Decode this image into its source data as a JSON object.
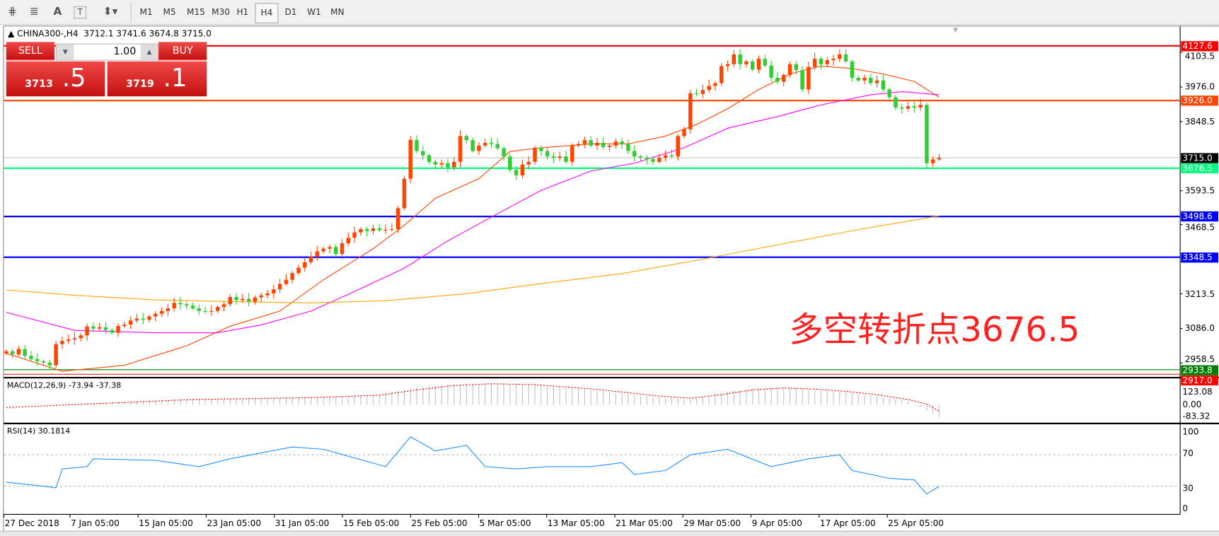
{
  "toolbar": {
    "tools": [
      "elliott-wave-icon",
      "fibonacci-fan-icon",
      "text-icon",
      "text-label-icon",
      "arrows-icon"
    ],
    "periods": [
      "M1",
      "M5",
      "M15",
      "M30",
      "H1",
      "H4",
      "D1",
      "W1",
      "MN"
    ],
    "active_period": "H4"
  },
  "chart": {
    "title": "CHINA300-,H4  3712.1 3741.6 3674.8 3715.0",
    "trade_panel": {
      "sell_label": "SELL",
      "buy_label": "BUY",
      "volume": "1.00",
      "sell_price_main": "3713",
      "sell_price_frac": ".5",
      "buy_price_main": "3719",
      "buy_price_frac": ".1"
    },
    "annotation": "多空转折点3676.5",
    "colors": {
      "up": "#ff4500",
      "down": "#32cd32",
      "ma_fast": "#ff4500",
      "ma_mid": "#ff00ff",
      "ma_slow": "#ffa500",
      "rsi": "#1e90ff",
      "macd_signal": "#ff0000",
      "macd_hist": "#c0c0c0"
    }
  },
  "price_axis": {
    "ticks": [
      "4103.5",
      "3976.0",
      "3848.5",
      "3593.5",
      "3468.5",
      "3213.5",
      "3086.0",
      "2958.5"
    ],
    "levels": [
      {
        "value": "4127.6",
        "color": "#ff0000"
      },
      {
        "value": "3926.0",
        "color": "#ff4500"
      },
      {
        "value": "3715.0",
        "color": "#000000"
      },
      {
        "value": "3676.5",
        "color": "#00ff7f"
      },
      {
        "value": "3498.6",
        "color": "#0000ff"
      },
      {
        "value": "3348.5",
        "color": "#0000ff"
      },
      {
        "value": "2917.0",
        "color": "#ff0000"
      },
      {
        "value": "2933.8",
        "color": "#008000"
      }
    ]
  },
  "time_axis": [
    "27 Dec 2018",
    "7 Jan 05:00",
    "15 Jan 05:00",
    "23 Jan 05:00",
    "31 Jan 05:00",
    "15 Feb 05:00",
    "25 Feb 05:00",
    "5 Mar 05:00",
    "13 Mar 05:00",
    "21 Mar 05:00",
    "29 Mar 05:00",
    "9 Apr 05:00",
    "17 Apr 05:00",
    "25 Apr 05:00"
  ],
  "macd": {
    "title": "MACD(12,26,9) -73.94 -37.38",
    "ticks": [
      "123.08",
      "0.00",
      "-83.32"
    ]
  },
  "rsi": {
    "title": "RSI(14) 30.1814",
    "ticks": [
      "100",
      "70",
      "30",
      "0"
    ]
  },
  "chart_data": {
    "type": "candlestick",
    "closes": [
      3002,
      2990,
      3010,
      2985,
      2973,
      2965,
      2960,
      2950,
      3028,
      3040,
      3045,
      3050,
      3060,
      3093,
      3085,
      3090,
      3080,
      3070,
      3095,
      3100,
      3115,
      3122,
      3118,
      3130,
      3140,
      3150,
      3160,
      3180,
      3175,
      3170,
      3160,
      3150,
      3148,
      3150,
      3165,
      3175,
      3202,
      3190,
      3195,
      3185,
      3200,
      3208,
      3215,
      3230,
      3250,
      3265,
      3290,
      3310,
      3330,
      3352,
      3370,
      3380,
      3386,
      3360,
      3400,
      3420,
      3440,
      3452,
      3445,
      3455,
      3448,
      3450,
      3452,
      3529,
      3638,
      3781,
      3740,
      3724,
      3700,
      3690,
      3695,
      3680,
      3700,
      3795,
      3780,
      3740,
      3760,
      3770,
      3766,
      3750,
      3720,
      3670,
      3650,
      3690,
      3700,
      3752,
      3740,
      3720,
      3715,
      3720,
      3700,
      3760,
      3766,
      3780,
      3760,
      3770,
      3755,
      3760,
      3775,
      3765,
      3740,
      3720,
      3715,
      3710,
      3700,
      3715,
      3724,
      3720,
      3795,
      3820,
      3953,
      3950,
      3965,
      3980,
      3990,
      4053,
      4060,
      4096,
      4060,
      4070,
      4040,
      4080,
      4055,
      4010,
      3995,
      4020,
      4060,
      4038,
      3967,
      4050,
      4080,
      4060,
      4075,
      4080,
      4096,
      4070,
      4010,
      4000,
      4010,
      3990,
      4000,
      3967,
      3938,
      3900,
      3896,
      3905,
      3900,
      3910,
      3695,
      3709,
      3715
    ],
    "ma_fast": [
      {
        "bar": 0,
        "value": 2994
      },
      {
        "bar": 9,
        "value": 2928
      },
      {
        "bar": 19,
        "value": 2950
      },
      {
        "bar": 29,
        "value": 3022
      },
      {
        "bar": 36,
        "value": 3094
      },
      {
        "bar": 44,
        "value": 3150
      },
      {
        "bar": 51,
        "value": 3265
      },
      {
        "bar": 59,
        "value": 3380
      },
      {
        "bar": 64,
        "value": 3466
      },
      {
        "bar": 69,
        "value": 3566
      },
      {
        "bar": 76,
        "value": 3638
      },
      {
        "bar": 81,
        "value": 3738
      },
      {
        "bar": 86,
        "value": 3752
      },
      {
        "bar": 94,
        "value": 3766
      },
      {
        "bar": 100,
        "value": 3766
      },
      {
        "bar": 106,
        "value": 3795
      },
      {
        "bar": 111,
        "value": 3838
      },
      {
        "bar": 116,
        "value": 3896
      },
      {
        "bar": 121,
        "value": 3967
      },
      {
        "bar": 126,
        "value": 4024
      },
      {
        "bar": 131,
        "value": 4053
      },
      {
        "bar": 136,
        "value": 4044
      },
      {
        "bar": 141,
        "value": 4024
      },
      {
        "bar": 146,
        "value": 3996
      },
      {
        "bar": 150,
        "value": 3938
      }
    ],
    "ma_mid": [
      {
        "bar": 0,
        "value": 3145
      },
      {
        "bar": 11,
        "value": 3079
      },
      {
        "bar": 24,
        "value": 3070
      },
      {
        "bar": 34,
        "value": 3070
      },
      {
        "bar": 41,
        "value": 3099
      },
      {
        "bar": 49,
        "value": 3150
      },
      {
        "bar": 56,
        "value": 3222
      },
      {
        "bar": 64,
        "value": 3308
      },
      {
        "bar": 71,
        "value": 3409
      },
      {
        "bar": 79,
        "value": 3509
      },
      {
        "bar": 86,
        "value": 3595
      },
      {
        "bar": 94,
        "value": 3666
      },
      {
        "bar": 101,
        "value": 3695
      },
      {
        "bar": 109,
        "value": 3752
      },
      {
        "bar": 116,
        "value": 3824
      },
      {
        "bar": 124,
        "value": 3867
      },
      {
        "bar": 131,
        "value": 3910
      },
      {
        "bar": 139,
        "value": 3947
      },
      {
        "bar": 144,
        "value": 3959
      },
      {
        "bar": 150,
        "value": 3947
      }
    ],
    "ma_slow": [
      {
        "bar": 0,
        "value": 3228
      },
      {
        "bar": 11,
        "value": 3208
      },
      {
        "bar": 24,
        "value": 3191
      },
      {
        "bar": 36,
        "value": 3185
      },
      {
        "bar": 49,
        "value": 3180
      },
      {
        "bar": 61,
        "value": 3188
      },
      {
        "bar": 74,
        "value": 3214
      },
      {
        "bar": 86,
        "value": 3251
      },
      {
        "bar": 99,
        "value": 3288
      },
      {
        "bar": 111,
        "value": 3337
      },
      {
        "bar": 124,
        "value": 3394
      },
      {
        "bar": 136,
        "value": 3446
      },
      {
        "bar": 150,
        "value": 3501
      }
    ],
    "macd_hist": [
      {
        "bar": 0,
        "value": -5
      },
      {
        "bar": 10,
        "value": 5
      },
      {
        "bar": 20,
        "value": 20
      },
      {
        "bar": 30,
        "value": 35
      },
      {
        "bar": 40,
        "value": 38
      },
      {
        "bar": 50,
        "value": 45
      },
      {
        "bar": 60,
        "value": 60
      },
      {
        "bar": 66,
        "value": 100
      },
      {
        "bar": 72,
        "value": 118
      },
      {
        "bar": 78,
        "value": 123
      },
      {
        "bar": 85,
        "value": 112
      },
      {
        "bar": 95,
        "value": 80
      },
      {
        "bar": 105,
        "value": 42
      },
      {
        "bar": 110,
        "value": 30
      },
      {
        "bar": 115,
        "value": 70
      },
      {
        "bar": 120,
        "value": 95
      },
      {
        "bar": 125,
        "value": 100
      },
      {
        "bar": 130,
        "value": 88
      },
      {
        "bar": 135,
        "value": 72
      },
      {
        "bar": 140,
        "value": 50
      },
      {
        "bar": 145,
        "value": 20
      },
      {
        "bar": 148,
        "value": -30
      },
      {
        "bar": 150,
        "value": -73.94
      }
    ],
    "macd_signal": [
      {
        "bar": 0,
        "value": -15
      },
      {
        "bar": 10,
        "value": 0
      },
      {
        "bar": 20,
        "value": 15
      },
      {
        "bar": 30,
        "value": 30
      },
      {
        "bar": 40,
        "value": 36
      },
      {
        "bar": 50,
        "value": 42
      },
      {
        "bar": 60,
        "value": 55
      },
      {
        "bar": 66,
        "value": 85
      },
      {
        "bar": 72,
        "value": 110
      },
      {
        "bar": 78,
        "value": 120
      },
      {
        "bar": 85,
        "value": 115
      },
      {
        "bar": 95,
        "value": 88
      },
      {
        "bar": 105,
        "value": 50
      },
      {
        "bar": 110,
        "value": 38
      },
      {
        "bar": 115,
        "value": 58
      },
      {
        "bar": 120,
        "value": 85
      },
      {
        "bar": 125,
        "value": 96
      },
      {
        "bar": 130,
        "value": 90
      },
      {
        "bar": 135,
        "value": 77
      },
      {
        "bar": 140,
        "value": 58
      },
      {
        "bar": 145,
        "value": 30
      },
      {
        "bar": 148,
        "value": 5
      },
      {
        "bar": 150,
        "value": -37.38
      }
    ],
    "rsi": [
      {
        "bar": 0,
        "value": 35
      },
      {
        "bar": 6,
        "value": 30
      },
      {
        "bar": 8,
        "value": 28
      },
      {
        "bar": 9,
        "value": 52
      },
      {
        "bar": 13,
        "value": 55
      },
      {
        "bar": 14,
        "value": 65
      },
      {
        "bar": 24,
        "value": 63
      },
      {
        "bar": 31,
        "value": 55
      },
      {
        "bar": 36,
        "value": 65
      },
      {
        "bar": 46,
        "value": 80
      },
      {
        "bar": 51,
        "value": 77
      },
      {
        "bar": 61,
        "value": 55
      },
      {
        "bar": 65,
        "value": 93
      },
      {
        "bar": 69,
        "value": 75
      },
      {
        "bar": 74,
        "value": 82
      },
      {
        "bar": 77,
        "value": 55
      },
      {
        "bar": 82,
        "value": 52
      },
      {
        "bar": 87,
        "value": 55
      },
      {
        "bar": 94,
        "value": 55
      },
      {
        "bar": 99,
        "value": 60
      },
      {
        "bar": 101,
        "value": 45
      },
      {
        "bar": 106,
        "value": 50
      },
      {
        "bar": 110,
        "value": 70
      },
      {
        "bar": 116,
        "value": 77
      },
      {
        "bar": 123,
        "value": 55
      },
      {
        "bar": 129,
        "value": 65
      },
      {
        "bar": 134,
        "value": 70
      },
      {
        "bar": 136,
        "value": 50
      },
      {
        "bar": 142,
        "value": 40
      },
      {
        "bar": 146,
        "value": 38
      },
      {
        "bar": 148,
        "value": 20
      },
      {
        "bar": 150,
        "value": 30
      }
    ]
  }
}
